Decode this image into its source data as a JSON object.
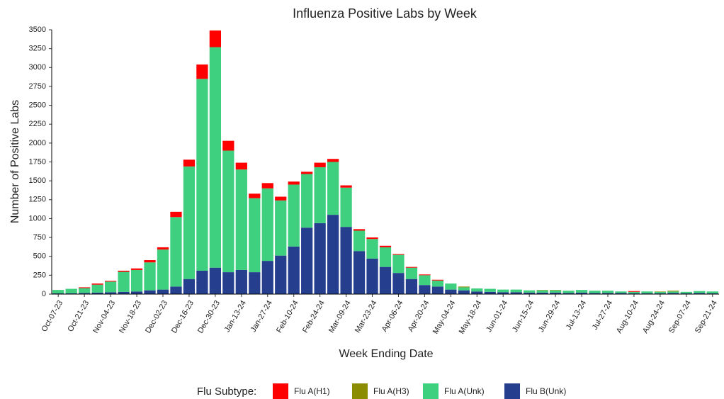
{
  "chart_data": {
    "type": "stacked_bar",
    "title": "Influenza Positive Labs by Week",
    "x_label": "Week Ending Date",
    "y_label": "Number of Positive Labs",
    "legend_title": "Flu Subtype:",
    "categories": [
      "Oct-07-23",
      null,
      "Oct-21-23",
      null,
      "Nov-04-23",
      null,
      "Nov-18-23",
      null,
      "Dec-02-23",
      null,
      "Dec-16-23",
      null,
      "Dec-30-23",
      null,
      "Jan-13-24",
      null,
      "Jan-27-24",
      null,
      "Feb-10-24",
      null,
      "Feb-24-24",
      null,
      "Mar-09-24",
      null,
      "Mar-23-24",
      null,
      "Apr-06-24",
      null,
      "Apr-20-24",
      null,
      "May-04-24",
      null,
      "May-18-24",
      null,
      "Jun-01-24",
      null,
      "Jun-15-24",
      null,
      "Jun-29-24",
      null,
      "Jul-13-24",
      null,
      "Jul-27-24",
      null,
      "Aug-10-24",
      null,
      "Aug-24-24",
      null,
      "Sep-07-24",
      null,
      "Sep-21-24"
    ],
    "series": [
      {
        "name": "Flu A(H1)",
        "color": "#ff0000",
        "values": [
          0,
          0,
          10,
          15,
          10,
          15,
          20,
          30,
          30,
          70,
          90,
          190,
          220,
          130,
          90,
          60,
          70,
          50,
          40,
          30,
          60,
          40,
          30,
          20,
          20,
          20,
          10,
          10,
          10,
          10,
          0,
          0,
          0,
          0,
          0,
          0,
          0,
          0,
          0,
          0,
          0,
          0,
          0,
          0,
          10,
          0,
          0,
          0,
          0,
          0,
          0
        ]
      },
      {
        "name": "Flu A(H3)",
        "color": "#8c8c00",
        "values": [
          0,
          0,
          0,
          0,
          0,
          0,
          0,
          0,
          0,
          0,
          0,
          0,
          0,
          0,
          0,
          0,
          0,
          0,
          0,
          0,
          0,
          0,
          0,
          0,
          0,
          0,
          0,
          0,
          0,
          0,
          0,
          10,
          0,
          0,
          0,
          0,
          0,
          5,
          5,
          0,
          0,
          0,
          0,
          0,
          0,
          0,
          5,
          10,
          0,
          0,
          0
        ]
      },
      {
        "name": "Flu A(Unk)",
        "color": "#3ecf7f",
        "values": [
          45,
          60,
          65,
          105,
          140,
          265,
          285,
          370,
          530,
          920,
          1490,
          2540,
          2920,
          1610,
          1330,
          980,
          960,
          730,
          820,
          710,
          740,
          700,
          520,
          270,
          260,
          260,
          240,
          150,
          130,
          80,
          80,
          40,
          40,
          40,
          35,
          35,
          30,
          30,
          30,
          30,
          35,
          30,
          30,
          20,
          20,
          25,
          20,
          20,
          20,
          25,
          25
        ]
      },
      {
        "name": "Flu B(Unk)",
        "color": "#253f8e",
        "values": [
          10,
          10,
          15,
          20,
          25,
          30,
          35,
          50,
          60,
          100,
          200,
          310,
          350,
          290,
          320,
          290,
          440,
          510,
          630,
          880,
          940,
          1050,
          890,
          570,
          470,
          360,
          280,
          200,
          120,
          100,
          60,
          50,
          35,
          30,
          25,
          25,
          20,
          20,
          20,
          15,
          20,
          15,
          15,
          15,
          10,
          10,
          10,
          15,
          10,
          15,
          10
        ]
      }
    ],
    "ylim": [
      0,
      3500
    ],
    "yticks": [
      0,
      250,
      500,
      750,
      1000,
      1250,
      1500,
      1750,
      2000,
      2250,
      2500,
      2750,
      3000,
      3250,
      3500
    ],
    "grid": false
  }
}
